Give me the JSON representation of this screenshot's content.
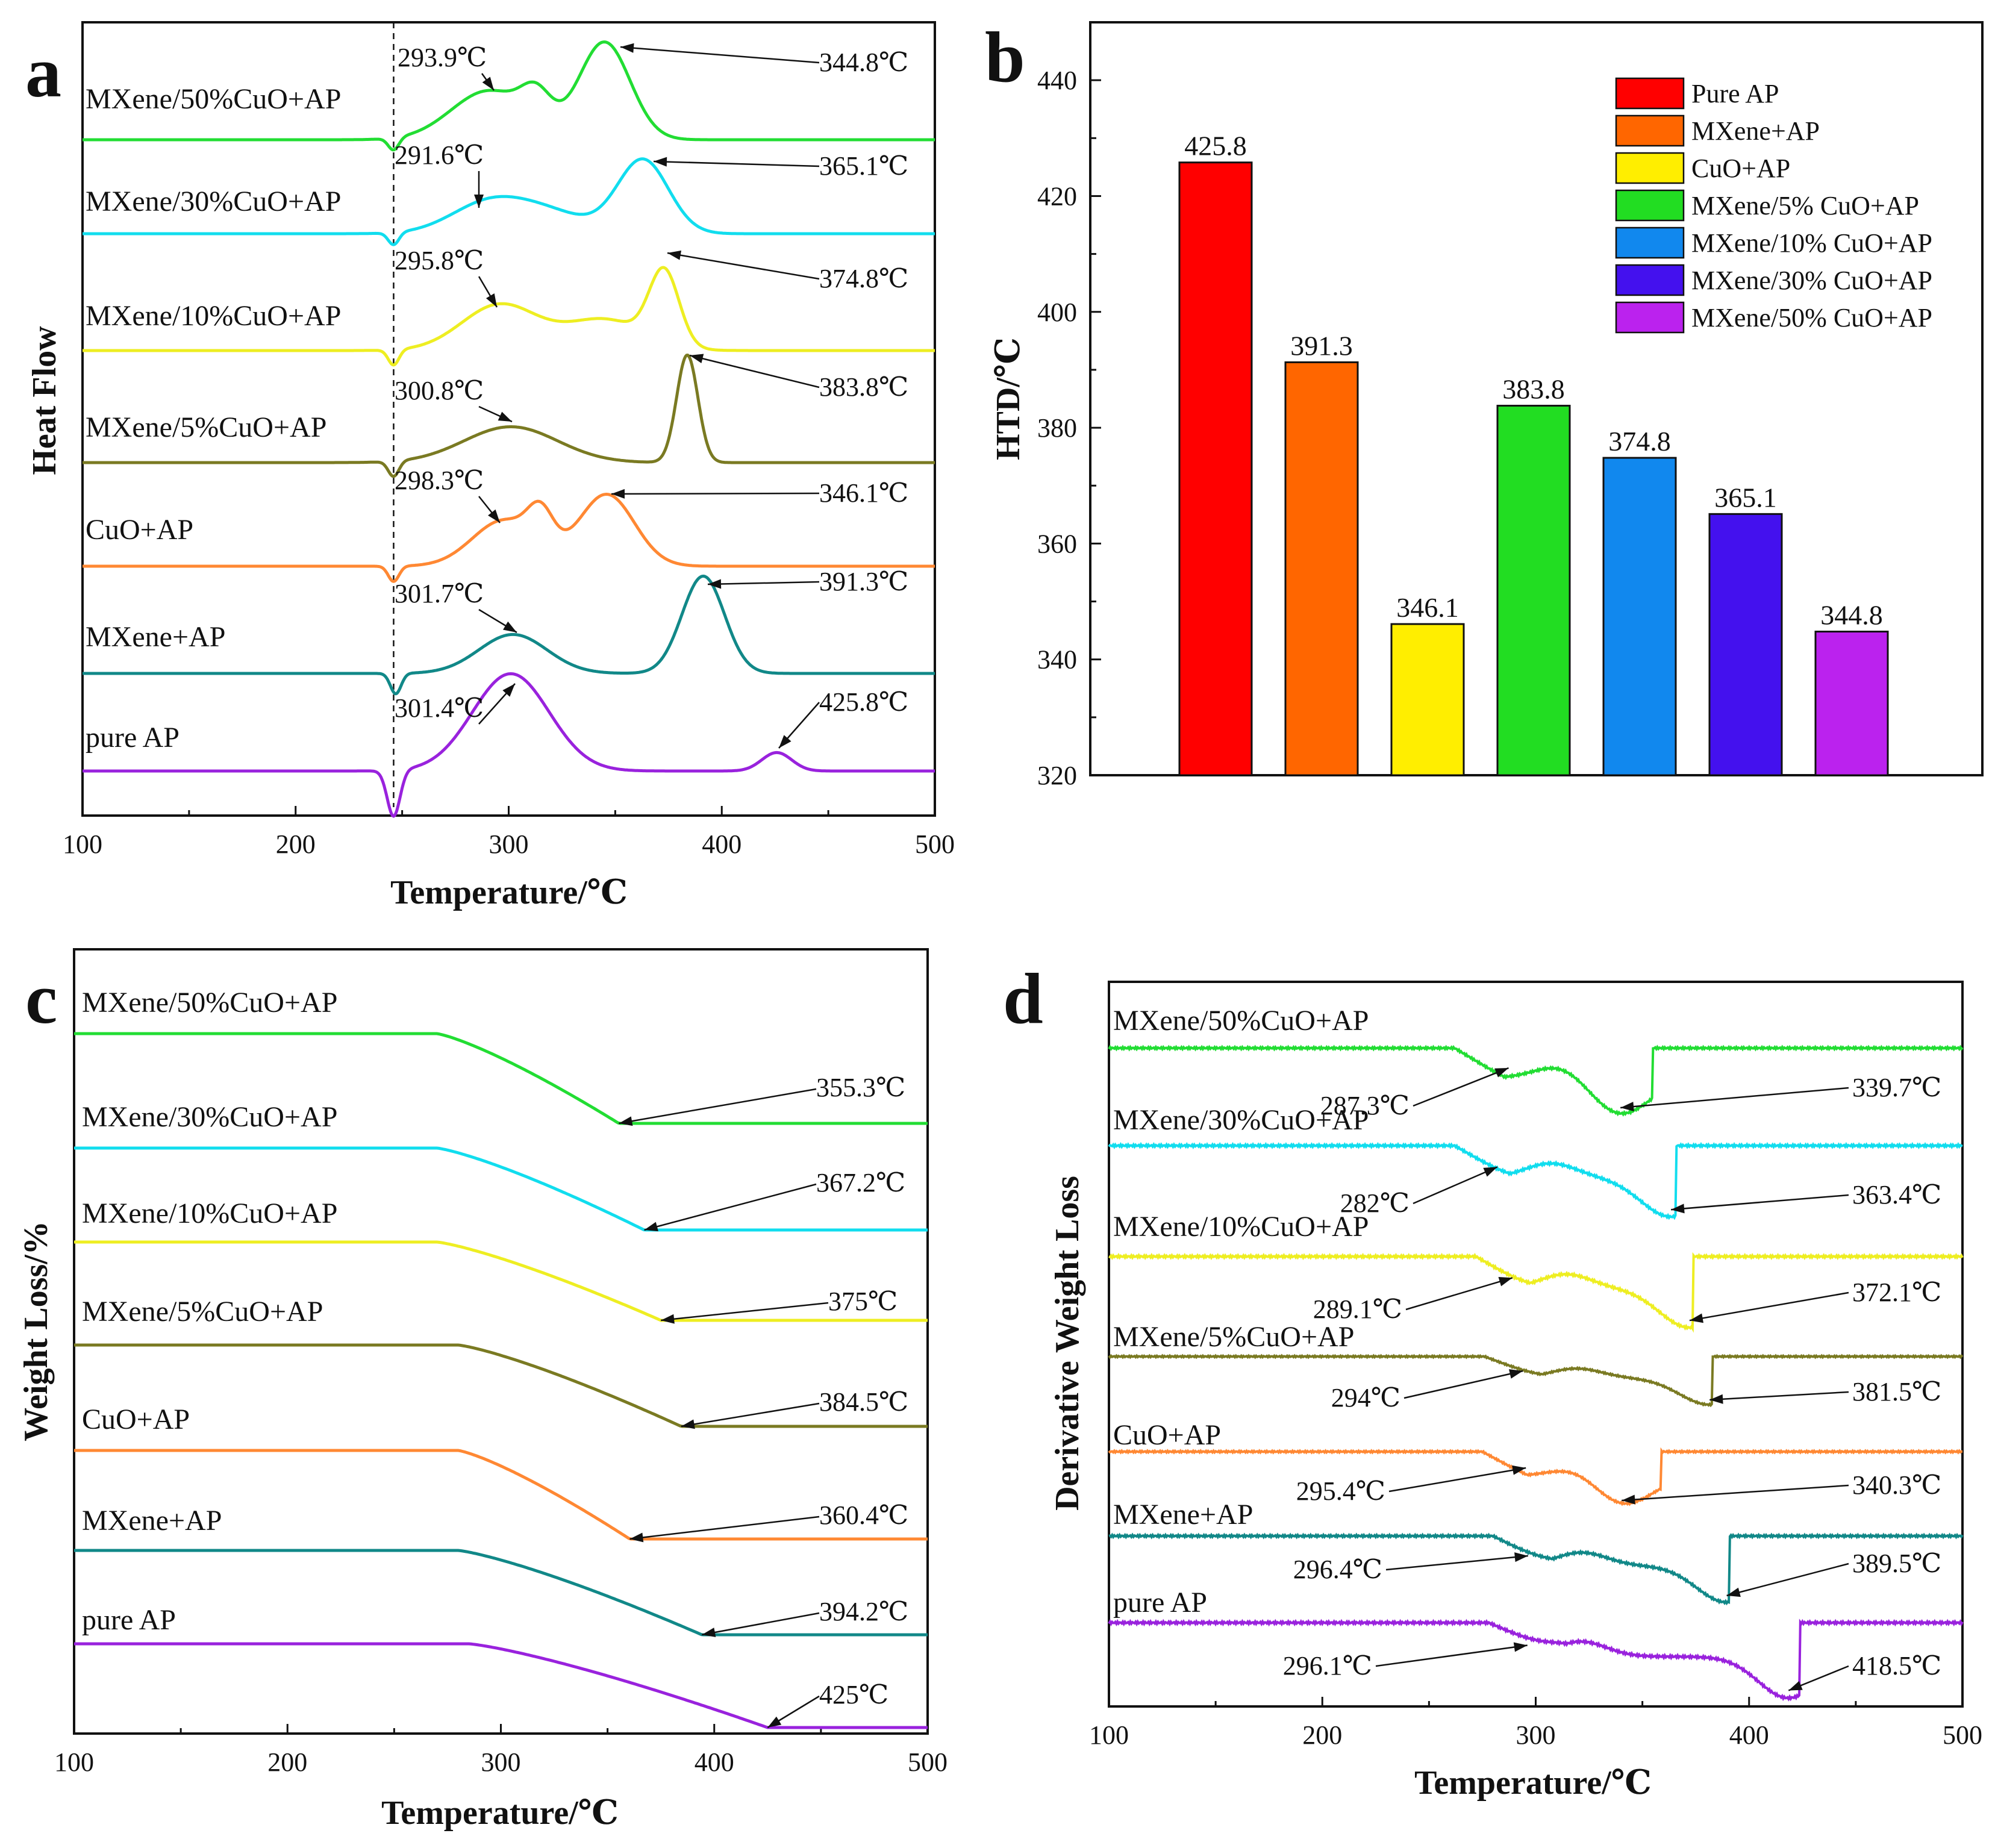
{
  "chart_data": [
    {
      "panel": "a",
      "type": "line",
      "xlabel": "Temperature/℃",
      "ylabel": "Heat Flow",
      "xlim": [
        100,
        500
      ],
      "xticks": [
        "100",
        "200",
        "300",
        "400",
        "500"
      ],
      "reference_line_x": 246,
      "series": [
        {
          "name": "MXene/50%CuO+AP",
          "color": "#22dd33",
          "amp": -1,
          "peaks": [
            {
              "x": 246,
              "h": -0.12,
              "w": 2.5
            },
            {
              "x": 291,
              "h": 0.48,
              "w": 18
            },
            {
              "x": 313,
              "h": 0.3,
              "w": 7
            },
            {
              "x": 345,
              "h": 0.95,
              "w": 12
            }
          ],
          "annotations": [
            {
              "label": "293.9℃",
              "x": 293.9
            },
            {
              "label": "344.8℃",
              "x": 344.8
            }
          ]
        },
        {
          "name": "MXene/30%CuO+AP",
          "color": "#11ddee",
          "amp": -1,
          "peaks": [
            {
              "x": 246,
              "h": -0.12,
              "w": 2.5
            },
            {
              "x": 291,
              "h": 0.3,
              "w": 18
            },
            {
              "x": 320,
              "h": 0.18,
              "w": 18
            },
            {
              "x": 363,
              "h": 0.72,
              "w": 12
            }
          ],
          "annotations": [
            {
              "label": "291.6℃",
              "x": 291.6
            },
            {
              "label": "365.1℃",
              "x": 365.1
            }
          ]
        },
        {
          "name": "MXene/10%CuO+AP",
          "color": "#eeee22",
          "amp": -1,
          "peaks": [
            {
              "x": 246,
              "h": -0.15,
              "w": 2.5
            },
            {
              "x": 296,
              "h": 0.45,
              "w": 18
            },
            {
              "x": 345,
              "h": 0.3,
              "w": 18
            },
            {
              "x": 373,
              "h": 0.72,
              "w": 7
            }
          ],
          "annotations": [
            {
              "label": "295.8℃",
              "x": 295.8
            },
            {
              "label": "374.8℃",
              "x": 374.8
            }
          ]
        },
        {
          "name": "MXene/5%CuO+AP",
          "color": "#7a7a22",
          "amp": -1,
          "peaks": [
            {
              "x": 246,
              "h": -0.15,
              "w": 2.5
            },
            {
              "x": 301,
              "h": 0.35,
              "w": 22
            },
            {
              "x": 383.8,
              "h": 1.05,
              "w": 5
            }
          ],
          "annotations": [
            {
              "label": "300.8℃",
              "x": 300.8
            },
            {
              "label": "383.8℃",
              "x": 383.8
            }
          ]
        },
        {
          "name": "CuO+AP",
          "color": "#ff8833",
          "amp": -1,
          "peaks": [
            {
              "x": 246,
              "h": -0.15,
              "w": 2.5
            },
            {
              "x": 298,
              "h": 0.45,
              "w": 15
            },
            {
              "x": 315,
              "h": 0.35,
              "w": 6
            },
            {
              "x": 346,
              "h": 0.7,
              "w": 13
            }
          ],
          "annotations": [
            {
              "label": "298.3℃",
              "x": 298.3
            },
            {
              "label": "346.1℃",
              "x": 346.1
            }
          ]
        },
        {
          "name": "MXene+AP",
          "color": "#118888",
          "amp": -1,
          "peaks": [
            {
              "x": 247,
              "h": -0.2,
              "w": 2.5
            },
            {
              "x": 302,
              "h": 0.38,
              "w": 16
            },
            {
              "x": 391.3,
              "h": 0.95,
              "w": 10
            }
          ],
          "annotations": [
            {
              "label": "301.7℃",
              "x": 301.7
            },
            {
              "label": "391.3℃",
              "x": 391.3
            }
          ]
        },
        {
          "name": "pure AP",
          "color": "#9922dd",
          "amp": -1,
          "peaks": [
            {
              "x": 246,
              "h": -0.45,
              "w": 3
            },
            {
              "x": 301,
              "h": 0.95,
              "w": 18
            },
            {
              "x": 425.8,
              "h": 0.18,
              "w": 7
            }
          ],
          "annotations": [
            {
              "label": "301.4℃",
              "x": 301.4
            },
            {
              "label": "425.8℃",
              "x": 425.8
            }
          ]
        }
      ]
    },
    {
      "panel": "b",
      "type": "bar",
      "ylabel": "HTD/℃",
      "ylim": [
        320,
        450
      ],
      "yticks": [
        "320",
        "340",
        "360",
        "380",
        "400",
        "420",
        "440"
      ],
      "categories": [
        "Pure AP",
        "MXene+AP",
        "CuO+AP",
        "MXene/5% CuO+AP",
        "MXene/10% CuO+AP",
        "MXene/30% CuO+AP",
        "MXene/50% CuO+AP"
      ],
      "values": [
        425.8,
        391.3,
        346.1,
        383.8,
        374.8,
        365.1,
        344.8
      ],
      "value_labels": [
        "425.8",
        "391.3",
        "346.1",
        "383.8",
        "374.8",
        "365.1",
        "344.8"
      ],
      "colors": [
        "#ff0000",
        "#ff6600",
        "#ffee00",
        "#22dd22",
        "#1188ee",
        "#4411ee",
        "#bb22ee"
      ],
      "legend": "top-right"
    },
    {
      "panel": "c",
      "type": "line",
      "xlabel": "Temperature/℃",
      "ylabel": "Weight Loss/%",
      "xlim": [
        100,
        500
      ],
      "xticks": [
        "100",
        "200",
        "300",
        "400",
        "500"
      ],
      "series": [
        {
          "name": "MXene/50%CuO+AP",
          "color": "#22dd33",
          "onset": 270,
          "end": 355.3,
          "drop": 0.75,
          "annotations": [
            {
              "label": "355.3℃",
              "x": 355.3
            }
          ]
        },
        {
          "name": "MXene/30%CuO+AP",
          "color": "#11ddee",
          "onset": 270,
          "end": 367.2,
          "drop": 0.75,
          "annotations": [
            {
              "label": "367.2℃",
              "x": 367.2
            }
          ]
        },
        {
          "name": "MXene/10%CuO+AP",
          "color": "#eeee22",
          "onset": 270,
          "end": 375,
          "drop": 0.75,
          "annotations": [
            {
              "label": "375℃",
              "x": 375
            }
          ]
        },
        {
          "name": "MXene/5%CuO+AP",
          "color": "#7a7a22",
          "onset": 280,
          "end": 384.5,
          "drop": 0.75,
          "annotations": [
            {
              "label": "384.5℃",
              "x": 384.5
            }
          ]
        },
        {
          "name": "CuO+AP",
          "color": "#ff8833",
          "onset": 280,
          "end": 360.4,
          "drop": 0.75,
          "annotations": [
            {
              "label": "360.4℃",
              "x": 360.4
            }
          ]
        },
        {
          "name": "MXene+AP",
          "color": "#118888",
          "onset": 280,
          "end": 394.2,
          "drop": 0.75,
          "annotations": [
            {
              "label": "394.2℃",
              "x": 394.2
            }
          ]
        },
        {
          "name": "pure AP",
          "color": "#9922dd",
          "onset": 285,
          "end": 425,
          "drop": 0.75,
          "annotations": [
            {
              "label": "425℃",
              "x": 425
            }
          ]
        }
      ]
    },
    {
      "panel": "d",
      "type": "line",
      "xlabel": "Temperature/℃",
      "ylabel": "Derivative Weight Loss",
      "xlim": [
        100,
        500
      ],
      "xticks": [
        "100",
        "200",
        "300",
        "400",
        "500"
      ],
      "series": [
        {
          "name": "MXene/50%CuO+AP",
          "color": "#22dd33",
          "onset": 262,
          "end": 355,
          "min1": 287.3,
          "min2": 339.7,
          "annotations": [
            {
              "label": "287.3℃",
              "x": 287.3
            },
            {
              "label": "339.7℃",
              "x": 339.7
            }
          ]
        },
        {
          "name": "MXene/30%CuO+AP",
          "color": "#11ddee",
          "onset": 262,
          "end": 366,
          "min1": 282,
          "min2": 363.4,
          "annotations": [
            {
              "label": "282℃",
              "x": 282
            },
            {
              "label": "363.4℃",
              "x": 363.4
            }
          ]
        },
        {
          "name": "MXene/10%CuO+AP",
          "color": "#eeee22",
          "onset": 272,
          "end": 374,
          "min1": 289.1,
          "min2": 372.1,
          "annotations": [
            {
              "label": "289.1℃",
              "x": 289.1
            },
            {
              "label": "372.1℃",
              "x": 372.1
            }
          ]
        },
        {
          "name": "MXene/5%CuO+AP",
          "color": "#7a7a22",
          "onset": 276,
          "end": 383,
          "min1": 294,
          "min2": 381.5,
          "annotations": [
            {
              "label": "294℃",
              "x": 294
            },
            {
              "label": "381.5℃",
              "x": 381.5
            }
          ]
        },
        {
          "name": "CuO+AP",
          "color": "#ff8833",
          "onset": 275,
          "end": 359,
          "min1": 295.4,
          "min2": 340.3,
          "annotations": [
            {
              "label": "295.4℃",
              "x": 295.4
            },
            {
              "label": "340.3℃",
              "x": 340.3
            }
          ]
        },
        {
          "name": "MXene+AP",
          "color": "#118888",
          "onset": 280,
          "end": 391,
          "min1": 296.4,
          "min2": 389.5,
          "annotations": [
            {
              "label": "296.4℃",
              "x": 296.4
            },
            {
              "label": "389.5℃",
              "x": 389.5
            }
          ]
        },
        {
          "name": "pure AP",
          "color": "#9922dd",
          "onset": 278,
          "end": 424,
          "min1": 296.1,
          "min2": 418.5,
          "annotations": [
            {
              "label": "296.1℃",
              "x": 296.1
            },
            {
              "label": "418.5℃",
              "x": 418.5
            }
          ]
        }
      ]
    }
  ]
}
